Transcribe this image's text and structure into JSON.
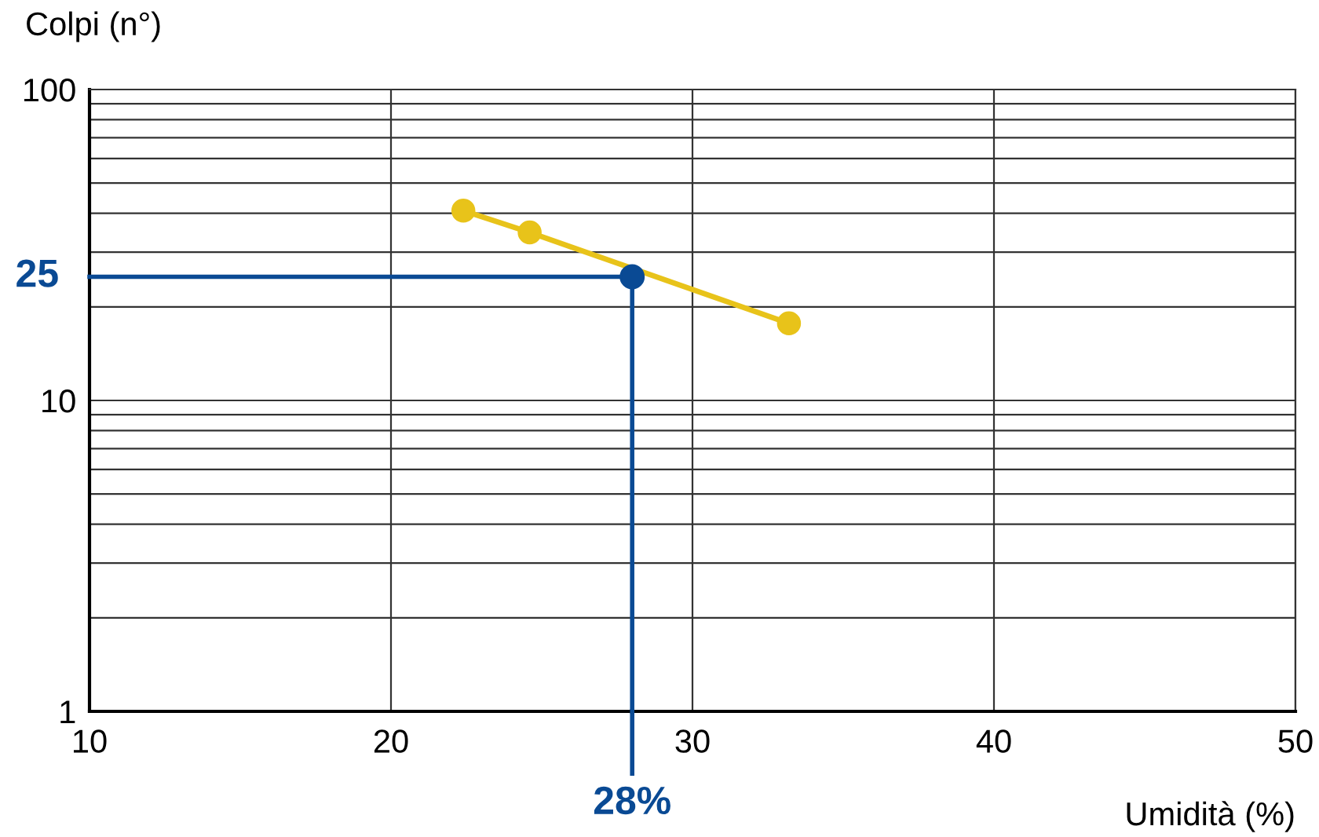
{
  "chart_data": {
    "type": "line",
    "xlabel": "Umidità (%)",
    "ylabel": "Colpi (n°)",
    "log": "y",
    "xlim": [
      10,
      50
    ],
    "ylim": [
      1,
      100
    ],
    "xticks": [
      10,
      20,
      30,
      40,
      50
    ],
    "yticks": [
      1,
      10,
      100
    ],
    "grid": true,
    "marker": "circle",
    "line_style": "solid",
    "series": [
      {
        "color": "#e8c31a",
        "x": [
          22.4,
          24.6,
          33.2
        ],
        "values": [
          40.8,
          34.7,
          17.7
        ]
      },
      {
        "type": "scatter",
        "color": "#0a4a94",
        "x": [
          28
        ],
        "values": [
          25
        ]
      }
    ],
    "ref_lines": [
      {
        "axis": "y",
        "value": 25,
        "label": "25",
        "color": "#0a4a94",
        "line_style": "solid"
      },
      {
        "axis": "x",
        "value": 28,
        "label": "28%",
        "color": "#0a4a94",
        "line_style": "solid"
      }
    ]
  }
}
